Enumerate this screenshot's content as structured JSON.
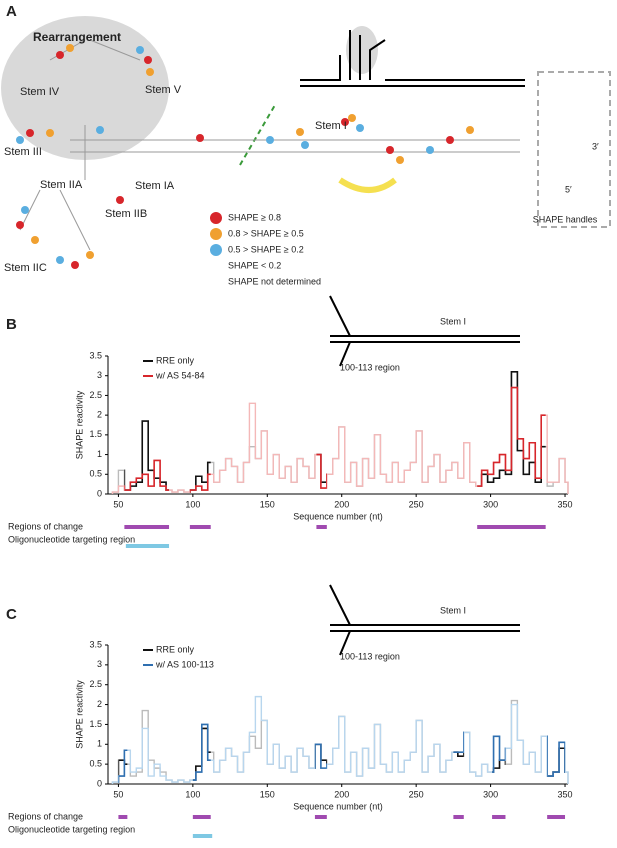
{
  "panel_a": {
    "label": "A",
    "title": "Rearrangement",
    "stems": [
      "Stem IV",
      "Stem V",
      "Stem III",
      "Stem IIA",
      "Stem IA",
      "Stem IIB",
      "Stem IIC",
      "Stem I"
    ],
    "five_prime": "5′",
    "three_prime": "3′",
    "handles": "SHAPE handles",
    "legend": [
      {
        "text": "SHAPE ≥ 0.8",
        "color": "#d7262b"
      },
      {
        "text": "0.8 > SHAPE ≥ 0.5",
        "color": "#f0a030"
      },
      {
        "text": "0.5 > SHAPE ≥ 0.2",
        "color": "#5aaee0"
      },
      {
        "text": "SHAPE < 0.2",
        "color": "#111111"
      },
      {
        "text": "SHAPE not determined",
        "color": "#aaaaaa"
      }
    ]
  },
  "chart_data": [
    {
      "type": "step",
      "panel": "B",
      "xlabel": "Sequence number (nt)",
      "ylabel": "SHAPE reactivity",
      "xlim": [
        43,
        352
      ],
      "ylim": [
        0,
        3.5
      ],
      "xticks": [
        50,
        100,
        150,
        200,
        250,
        300,
        350
      ],
      "yticks": [
        0,
        0.5,
        1,
        1.5,
        2,
        2.5,
        3,
        3.5
      ],
      "x": [
        46,
        50,
        54,
        58,
        62,
        66,
        70,
        74,
        78,
        82,
        86,
        90,
        94,
        98,
        102,
        106,
        110,
        114,
        118,
        122,
        126,
        130,
        134,
        138,
        142,
        146,
        150,
        154,
        158,
        162,
        166,
        170,
        174,
        178,
        182,
        186,
        190,
        194,
        198,
        202,
        206,
        210,
        214,
        218,
        222,
        226,
        230,
        234,
        238,
        242,
        246,
        250,
        254,
        258,
        262,
        266,
        270,
        274,
        278,
        282,
        286,
        290,
        294,
        298,
        302,
        306,
        310,
        314,
        318,
        322,
        326,
        330,
        334,
        338,
        342,
        346,
        350
      ],
      "series": [
        {
          "name": "RRE only",
          "color": "#111111",
          "light_color": "#bbbbbb",
          "values": [
            0.05,
            0.6,
            0.1,
            0.2,
            0.3,
            1.85,
            0.6,
            0.4,
            0.3,
            0.1,
            0.05,
            0.1,
            0.05,
            0.1,
            0.45,
            0.3,
            0.8,
            0.3,
            0.6,
            0.9,
            0.7,
            0.3,
            0.8,
            1.2,
            0.9,
            1.6,
            0.5,
            1.0,
            0.4,
            0.7,
            0.3,
            0.9,
            0.7,
            0.4,
            1.0,
            0.3,
            0.5,
            0.9,
            1.7,
            0.3,
            0.8,
            0.2,
            0.9,
            0.4,
            1.5,
            0.5,
            0.3,
            0.8,
            0.3,
            0.6,
            0.8,
            1.6,
            0.3,
            0.7,
            1.0,
            0.3,
            0.6,
            0.8,
            0.4,
            1.3,
            0.3,
            0.2,
            0.5,
            0.3,
            0.4,
            0.6,
            0.5,
            3.1,
            1.1,
            0.5,
            0.8,
            0.3,
            1.2,
            0.2,
            0.3,
            0.9,
            0.3
          ]
        },
        {
          "name": "w/ AS 54-84",
          "color": "#d7262b",
          "light_color": "#f4b8b8",
          "values": [
            0.05,
            0.2,
            0.1,
            0.3,
            0.4,
            0.5,
            0.2,
            0.85,
            0.2,
            0.1,
            0.05,
            0.1,
            0.05,
            0.1,
            0.2,
            0.1,
            0.5,
            0.3,
            0.6,
            0.9,
            0.7,
            0.3,
            0.8,
            2.3,
            0.9,
            1.6,
            0.5,
            1.0,
            0.4,
            0.7,
            0.3,
            0.9,
            0.7,
            0.4,
            1.0,
            0.15,
            0.5,
            0.9,
            1.7,
            0.3,
            0.8,
            0.2,
            0.9,
            0.4,
            1.5,
            0.5,
            0.3,
            0.8,
            0.3,
            0.6,
            0.8,
            1.6,
            0.3,
            0.7,
            1.0,
            0.3,
            0.6,
            0.8,
            0.4,
            1.3,
            0.3,
            0.2,
            0.6,
            0.5,
            0.8,
            1.0,
            0.6,
            2.7,
            1.4,
            0.9,
            1.3,
            0.4,
            2.0,
            0.3,
            0.3,
            0.9,
            0.3
          ]
        }
      ],
      "regions_label": "Regions of change",
      "regions": [
        [
          54,
          84
        ],
        [
          98,
          112
        ],
        [
          183,
          190
        ],
        [
          291,
          337
        ]
      ],
      "oligo_label": "Oligonucleotide targeting region",
      "oligo_color": "#7ec8e3",
      "oligo": [
        [
          55,
          84
        ]
      ],
      "region_color": "#a04ab0",
      "inset_labels": [
        "Stem I",
        "100-113 region"
      ]
    },
    {
      "type": "step",
      "panel": "C",
      "xlabel": "Sequence number (nt)",
      "ylabel": "SHAPE reactivity",
      "xlim": [
        43,
        352
      ],
      "ylim": [
        0,
        3.5
      ],
      "xticks": [
        50,
        100,
        150,
        200,
        250,
        300,
        350
      ],
      "yticks": [
        0,
        0.5,
        1,
        1.5,
        2,
        2.5,
        3,
        3.5
      ],
      "x": [
        46,
        50,
        54,
        58,
        62,
        66,
        70,
        74,
        78,
        82,
        86,
        90,
        94,
        98,
        102,
        106,
        110,
        114,
        118,
        122,
        126,
        130,
        134,
        138,
        142,
        146,
        150,
        154,
        158,
        162,
        166,
        170,
        174,
        178,
        182,
        186,
        190,
        194,
        198,
        202,
        206,
        210,
        214,
        218,
        222,
        226,
        230,
        234,
        238,
        242,
        246,
        250,
        254,
        258,
        262,
        266,
        270,
        274,
        278,
        282,
        286,
        290,
        294,
        298,
        302,
        306,
        310,
        314,
        318,
        322,
        326,
        330,
        334,
        338,
        342,
        346,
        350
      ],
      "series": [
        {
          "name": "RRE only",
          "color": "#111111",
          "light_color": "#bbbbbb",
          "values": [
            0.05,
            0.6,
            0.5,
            0.2,
            0.3,
            1.85,
            0.6,
            0.4,
            0.3,
            0.1,
            0.05,
            0.1,
            0.05,
            0.1,
            0.45,
            1.4,
            0.8,
            0.3,
            0.6,
            0.9,
            0.7,
            0.3,
            0.8,
            1.2,
            0.9,
            1.6,
            0.5,
            1.0,
            0.4,
            0.7,
            0.3,
            0.9,
            0.7,
            0.4,
            1.0,
            0.6,
            0.5,
            0.9,
            1.7,
            0.3,
            0.8,
            0.2,
            0.9,
            0.4,
            1.5,
            0.5,
            0.3,
            0.8,
            0.3,
            0.6,
            0.8,
            1.6,
            0.3,
            0.7,
            1.0,
            0.3,
            0.6,
            0.8,
            0.7,
            1.3,
            0.3,
            0.2,
            0.5,
            0.3,
            0.4,
            0.6,
            0.5,
            2.1,
            1.1,
            0.5,
            0.8,
            0.3,
            1.2,
            0.2,
            0.3,
            0.9,
            0.3
          ]
        },
        {
          "name": "w/ AS 100-113",
          "color": "#2f6fb0",
          "light_color": "#b8d6ee",
          "values": [
            0.05,
            0.2,
            0.85,
            0.3,
            0.4,
            1.4,
            0.2,
            0.5,
            0.2,
            0.1,
            0.05,
            0.1,
            0.05,
            0.1,
            0.3,
            1.5,
            0.6,
            0.3,
            0.6,
            0.9,
            0.7,
            0.3,
            0.8,
            1.3,
            2.2,
            1.6,
            0.5,
            1.0,
            0.4,
            0.7,
            0.3,
            0.9,
            0.7,
            0.4,
            1.0,
            0.4,
            0.5,
            0.9,
            1.7,
            0.3,
            0.8,
            0.2,
            0.9,
            0.4,
            1.5,
            0.5,
            0.3,
            0.8,
            0.3,
            0.6,
            0.8,
            1.6,
            0.3,
            0.7,
            1.0,
            0.3,
            0.6,
            0.8,
            0.8,
            1.3,
            0.3,
            0.2,
            0.5,
            0.3,
            1.2,
            0.6,
            0.9,
            2.0,
            1.1,
            0.5,
            0.8,
            0.3,
            1.2,
            0.2,
            0.3,
            1.05,
            0.3
          ]
        }
      ],
      "regions_label": "Regions of change",
      "regions": [
        [
          50,
          56
        ],
        [
          100,
          112
        ],
        [
          182,
          190
        ],
        [
          275,
          282
        ],
        [
          301,
          310
        ],
        [
          338,
          350
        ]
      ],
      "oligo_label": "Oligonucleotide targeting region",
      "oligo_color": "#7ec8e3",
      "oligo": [
        [
          100,
          113
        ]
      ],
      "region_color": "#a04ab0",
      "inset_labels": [
        "Stem I",
        "100-113 region"
      ]
    }
  ]
}
